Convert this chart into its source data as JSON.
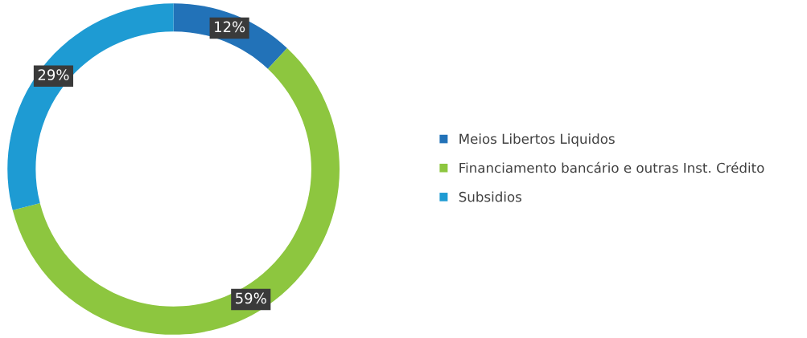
{
  "chart_data": {
    "type": "donut",
    "categories": [
      "Meios Libertos Liquidos",
      "Financiamento bancário e outras Inst. Crédito",
      "Subsidios"
    ],
    "values": [
      12,
      59,
      29
    ],
    "colors": [
      "#2272b8",
      "#8dc63f",
      "#1e9bd3"
    ],
    "value_labels": [
      "12%",
      "59%",
      "29%"
    ],
    "legend": "right"
  }
}
